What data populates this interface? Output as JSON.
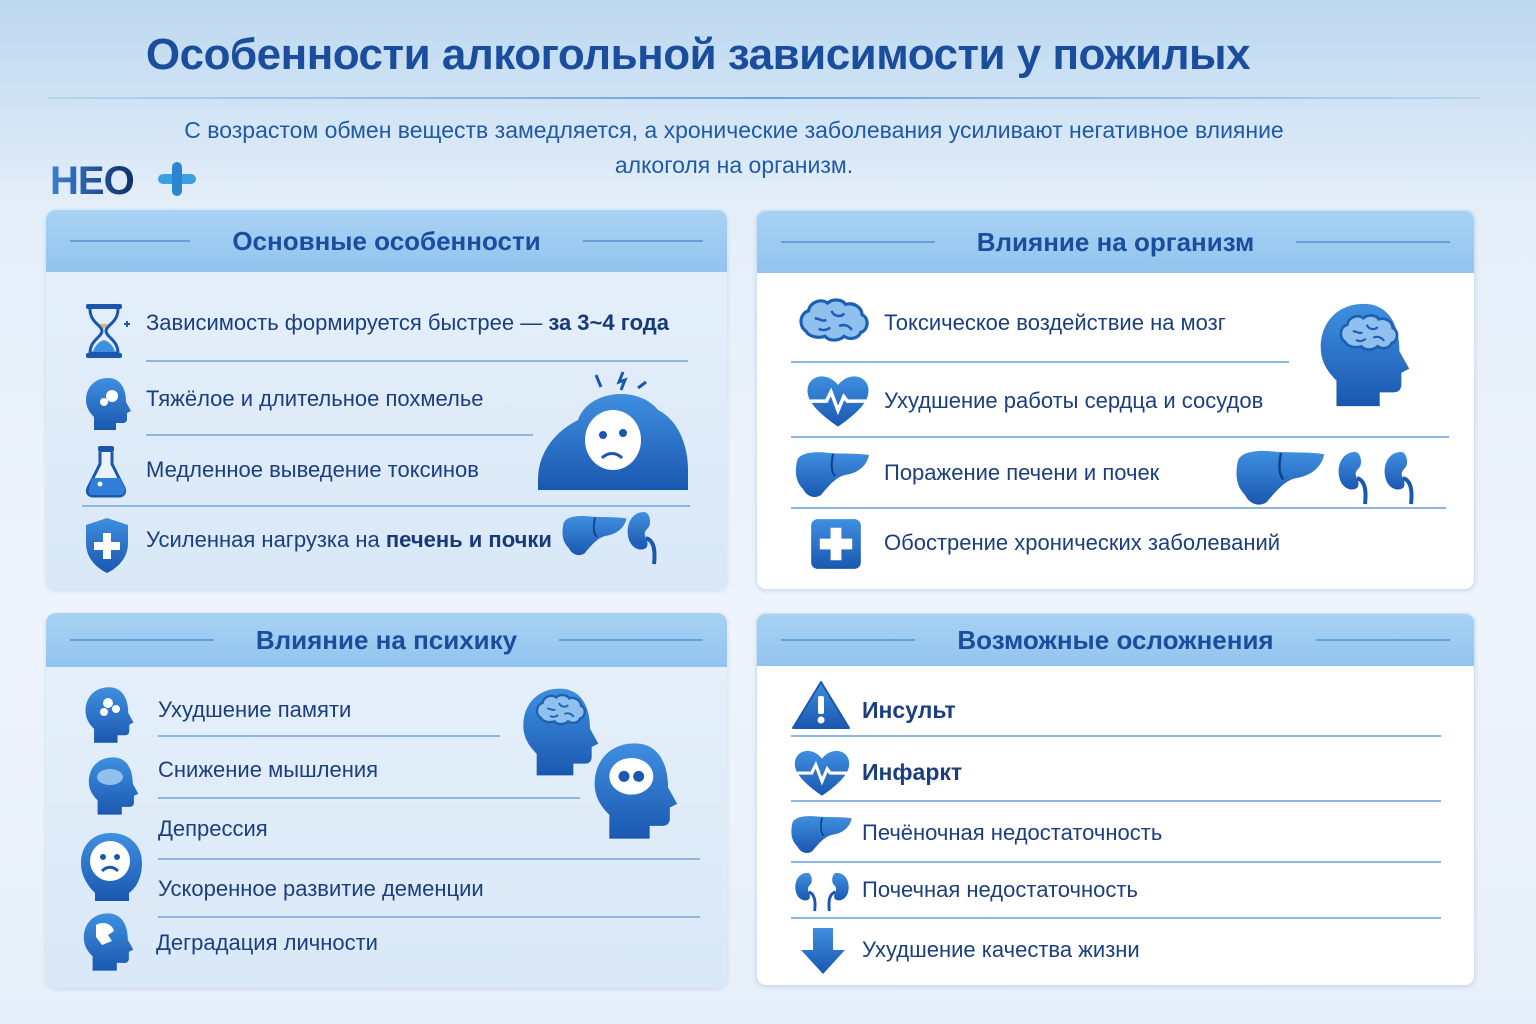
{
  "title": "Особенности алкогольной зависимости у пожилых",
  "subtitle_line1": "С возрастом обмен веществ замедляется, а хронические заболевания усиливают негативное влияние",
  "subtitle_line2": "алкоголя на организм.",
  "logo": "НЕО+",
  "colors": {
    "primary": "#1b4d9e",
    "accent": "#2f7fd8",
    "header_bg": "#9ccbf0"
  },
  "panels": {
    "main_features": {
      "title": "Основные особенности",
      "items": [
        {
          "text": "Зависимость формируется быстрее — ",
          "bold": "за 3~4 года",
          "icon": "hourglass-icon"
        },
        {
          "text": "Тяжёлое и длительное похмелье",
          "icon": "head-icon"
        },
        {
          "text": "Медленное выведение токсинов",
          "icon": "flask-icon"
        },
        {
          "text": "Усиленная нагрузка на ",
          "bold": "печень и почки",
          "icon": "shield-cross-icon"
        }
      ]
    },
    "body_impact": {
      "title": "Влияние на организм",
      "items": [
        {
          "text": "Токсическое воздействие на мозг",
          "icon": "brain-icon"
        },
        {
          "text": "Ухудшение работы сердца и сосудов",
          "icon": "heart-pulse-icon"
        },
        {
          "text": "Поражение печени и почек",
          "icon": "liver-icon"
        },
        {
          "text": "Обострение хронических заболеваний",
          "icon": "medical-cross-icon"
        }
      ]
    },
    "psyche_impact": {
      "title": "Влияние на психику",
      "items": [
        {
          "text": "Ухудшение памяти",
          "icon": "head-memory-icon"
        },
        {
          "text": "Снижение мышления",
          "icon": "head-cloud-icon"
        },
        {
          "text": "Депрессия",
          "icon": "sad-face-icon"
        },
        {
          "text": "Ускоренное развитие деменции",
          "icon": "none"
        },
        {
          "text": "Деградация личности",
          "icon": "head-broken-icon"
        }
      ]
    },
    "complications": {
      "title": "Возможные осложнения",
      "items": [
        {
          "text": "Инсульт",
          "icon": "warning-icon"
        },
        {
          "text": "Инфаркт",
          "icon": "heart-pulse-icon"
        },
        {
          "text": "Печёночная недостаточность",
          "icon": "liver-icon"
        },
        {
          "text": "Почечная недостаточность",
          "icon": "kidneys-icon"
        },
        {
          "text": "Ухудшение качества жизни",
          "icon": "arrow-down-icon"
        }
      ]
    }
  }
}
